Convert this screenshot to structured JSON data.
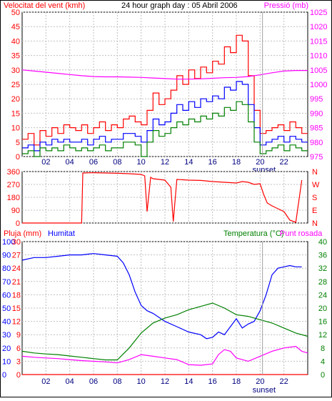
{
  "page": {
    "graph_title": "24 hour graph day : 05 Abril 2006",
    "x_ticks": [
      "02",
      "04",
      "06",
      "08",
      "10",
      "12",
      "14",
      "16",
      "18",
      "20",
      "22"
    ],
    "x_hours": [
      2,
      4,
      6,
      8,
      10,
      12,
      14,
      16,
      18,
      20,
      22
    ],
    "sunset_label": "sunset",
    "sunset_hour": 20.2
  },
  "chart_data": [
    {
      "type": "line",
      "id": "wind-pressure",
      "title_left": "Velocitat del vent (kmh)",
      "title_right": "Pressió (mb)",
      "xlim": [
        0,
        24
      ],
      "ylim_left": [
        0,
        50
      ],
      "ylim_right": [
        975,
        1025
      ],
      "left_ticks": [
        0,
        5,
        10,
        15,
        20,
        25,
        30,
        35,
        40,
        45,
        50
      ],
      "right_ticks": [
        975,
        980,
        985,
        990,
        995,
        1000,
        1005,
        1010,
        1015,
        1020,
        1025
      ],
      "colors": {
        "gust": "#ff0000",
        "average": "#0000ff",
        "minimum": "#008000",
        "pressure": "#ff00ff"
      },
      "series": [
        {
          "key": "gust",
          "axis": "left",
          "x": [
            0,
            0.5,
            1,
            1.5,
            2,
            2.5,
            3,
            3.5,
            4,
            4.5,
            5,
            5.5,
            6,
            6.5,
            7,
            7.5,
            8,
            8.5,
            9,
            9.5,
            10,
            10.5,
            11,
            11.5,
            12,
            12.5,
            13,
            13.5,
            14,
            14.5,
            15,
            15.5,
            16,
            16.5,
            17,
            17.5,
            18,
            18.5,
            19,
            19.5,
            20,
            20.5,
            21,
            21.5,
            22,
            22.5,
            23,
            23.5
          ],
          "values": [
            6,
            8,
            4,
            9,
            7,
            10,
            8,
            11,
            10,
            9,
            11,
            8,
            10,
            12,
            9,
            11,
            10,
            13,
            14,
            12,
            11,
            16,
            22,
            18,
            20,
            23,
            28,
            25,
            30,
            27,
            31,
            29,
            33,
            32,
            38,
            36,
            42,
            40,
            28,
            16,
            8,
            9,
            10,
            11,
            9,
            12,
            10,
            8
          ]
        },
        {
          "key": "average",
          "axis": "left",
          "x": [
            0,
            0.5,
            1,
            1.5,
            2,
            2.5,
            3,
            3.5,
            4,
            4.5,
            5,
            5.5,
            6,
            6.5,
            7,
            7.5,
            8,
            8.5,
            9,
            9.5,
            10,
            10.5,
            11,
            11.5,
            12,
            12.5,
            13,
            13.5,
            14,
            14.5,
            15,
            15.5,
            16,
            16.5,
            17,
            17.5,
            18,
            18.5,
            19,
            19.5,
            20,
            20.5,
            21,
            21.5,
            22,
            22.5,
            23,
            23.5
          ],
          "values": [
            3,
            4,
            2,
            5,
            4,
            6,
            5,
            6,
            5,
            5,
            6,
            4,
            6,
            7,
            5,
            6,
            6,
            8,
            8,
            7,
            5,
            9,
            13,
            11,
            12,
            15,
            18,
            16,
            19,
            17,
            20,
            19,
            21,
            20,
            24,
            23,
            26,
            25,
            18,
            10,
            4,
            5,
            6,
            7,
            5,
            7,
            6,
            5
          ]
        },
        {
          "key": "minimum",
          "axis": "left",
          "x": [
            0,
            0.5,
            1,
            1.5,
            2,
            2.5,
            3,
            3.5,
            4,
            4.5,
            5,
            5.5,
            6,
            6.5,
            7,
            7.5,
            8,
            8.5,
            9,
            9.5,
            10,
            10.5,
            11,
            11.5,
            12,
            12.5,
            13,
            13.5,
            14,
            14.5,
            15,
            15.5,
            16,
            16.5,
            17,
            17.5,
            18,
            18.5,
            19,
            19.5,
            20,
            20.5,
            21,
            21.5,
            22,
            22.5,
            23,
            23.5
          ],
          "values": [
            1,
            2,
            0,
            3,
            2,
            3,
            2,
            4,
            3,
            2,
            3,
            2,
            3,
            4,
            2,
            3,
            3,
            5,
            5,
            4,
            0,
            5,
            9,
            7,
            8,
            10,
            12,
            11,
            13,
            12,
            14,
            13,
            15,
            14,
            17,
            16,
            19,
            18,
            12,
            5,
            1,
            2,
            3,
            4,
            2,
            4,
            3,
            2
          ]
        },
        {
          "key": "pressure",
          "axis": "right",
          "x": [
            0,
            1,
            2,
            3,
            4,
            5,
            6,
            7,
            8,
            9,
            10,
            11,
            12,
            13,
            14,
            15,
            16,
            17,
            18,
            19,
            20,
            21,
            22,
            23,
            24
          ],
          "values": [
            1005,
            1004.6,
            1004.2,
            1003.8,
            1003.4,
            1003,
            1002.7,
            1002.6,
            1002.6,
            1002.5,
            1002.4,
            1002.2,
            1002,
            1001.8,
            1001.8,
            1001.9,
            1002.1,
            1002.3,
            1002.4,
            1002.7,
            1003.3,
            1004,
            1004.6,
            1004.8,
            1004.8
          ]
        }
      ]
    },
    {
      "type": "line",
      "id": "wind-direction",
      "xlim": [
        0,
        24
      ],
      "ylim": [
        0,
        360
      ],
      "left_ticks": [
        0,
        90,
        180,
        270,
        360
      ],
      "right_labels": [
        "N",
        "W",
        "S",
        "E",
        "N"
      ],
      "colors": {
        "direction": "#ff0000"
      },
      "series": [
        {
          "key": "direction",
          "x": [
            0,
            5,
            5.1,
            6,
            7,
            8,
            9,
            10,
            10.3,
            10.5,
            10.8,
            11,
            12,
            12.5,
            12.7,
            13,
            14,
            15,
            16,
            17,
            18,
            18.5,
            19,
            19.5,
            20,
            20.3,
            20.6,
            21,
            21.5,
            22,
            22.5,
            23,
            23.5
          ],
          "values": [
            0,
            0,
            350,
            352,
            350,
            348,
            345,
            340,
            330,
            80,
            320,
            310,
            300,
            250,
            10,
            305,
            300,
            298,
            290,
            285,
            280,
            290,
            285,
            270,
            275,
            200,
            140,
            120,
            100,
            80,
            20,
            5,
            300
          ]
        }
      ]
    },
    {
      "type": "line",
      "id": "humidity-temperature",
      "title_left_a": "Pluja (mm)",
      "title_left_b": "Humitat",
      "title_right_a": "Temperatura (°C)",
      "title_right_b": "Punt rosada",
      "xlim": [
        0,
        24
      ],
      "ylim_humidity": [
        0,
        100
      ],
      "ylim_rain": [
        0,
        30
      ],
      "ylim_temp": [
        0,
        40
      ],
      "humidity_ticks": [
        0,
        10,
        20,
        30,
        40,
        50,
        60,
        70,
        80,
        90,
        100
      ],
      "rain_ticks": [
        0,
        3,
        6,
        9,
        12,
        15,
        18,
        21,
        24,
        27,
        30
      ],
      "temp_ticks": [
        0,
        4,
        8,
        12,
        16,
        20,
        24,
        28,
        32,
        36,
        40
      ],
      "colors": {
        "humidity": "#0000ff",
        "temperature": "#008000",
        "dewpoint": "#ff00ff",
        "rain": "#ff0000"
      },
      "series": [
        {
          "key": "humidity",
          "axis": "humidity",
          "x": [
            0,
            1,
            2,
            3,
            4,
            5,
            6,
            7,
            8,
            8.5,
            9,
            9.5,
            10,
            10.5,
            11,
            12,
            13,
            14,
            15,
            15.5,
            16,
            16.5,
            17,
            17.5,
            18,
            18.5,
            19,
            19.5,
            20,
            20.5,
            21,
            21.5,
            22,
            22.5,
            23,
            23.5
          ],
          "values": [
            86,
            88,
            88,
            89,
            90,
            90,
            91,
            90,
            89,
            84,
            75,
            62,
            52,
            48,
            46,
            40,
            36,
            32,
            30,
            27,
            28,
            32,
            30,
            36,
            42,
            35,
            38,
            40,
            48,
            60,
            75,
            80,
            81,
            82,
            81,
            81
          ]
        },
        {
          "key": "temperature",
          "axis": "temp",
          "x": [
            0,
            1,
            2,
            3,
            4,
            5,
            6,
            7,
            8,
            9,
            10,
            11,
            12,
            13,
            14,
            15,
            16,
            17,
            18,
            19,
            20,
            21,
            22,
            23,
            24
          ],
          "values": [
            7,
            6.5,
            6.2,
            6,
            5.6,
            5.2,
            4.8,
            4.4,
            4.4,
            8,
            12.5,
            15.5,
            17,
            18,
            19.5,
            20.5,
            21.5,
            20,
            18,
            17.5,
            16.5,
            15.5,
            14,
            12.5,
            11.5
          ]
        },
        {
          "key": "dewpoint",
          "axis": "temp",
          "x": [
            0,
            1,
            2,
            3,
            4,
            5,
            6,
            7,
            8,
            9,
            10,
            11,
            12,
            13,
            14,
            15,
            16,
            16.5,
            17,
            17.5,
            18,
            19,
            20,
            21,
            22,
            23,
            23.5,
            24
          ],
          "values": [
            5.5,
            5.2,
            5,
            4.8,
            4.5,
            4.2,
            4,
            3.8,
            3.5,
            4.5,
            6,
            5.5,
            5,
            4.5,
            3,
            2.8,
            3.2,
            6,
            7.5,
            7,
            5,
            4,
            5.5,
            7,
            8,
            8.5,
            7,
            6.5
          ]
        },
        {
          "key": "rain",
          "axis": "rain",
          "x": [
            0,
            24
          ],
          "values": [
            0,
            0
          ]
        }
      ]
    }
  ]
}
